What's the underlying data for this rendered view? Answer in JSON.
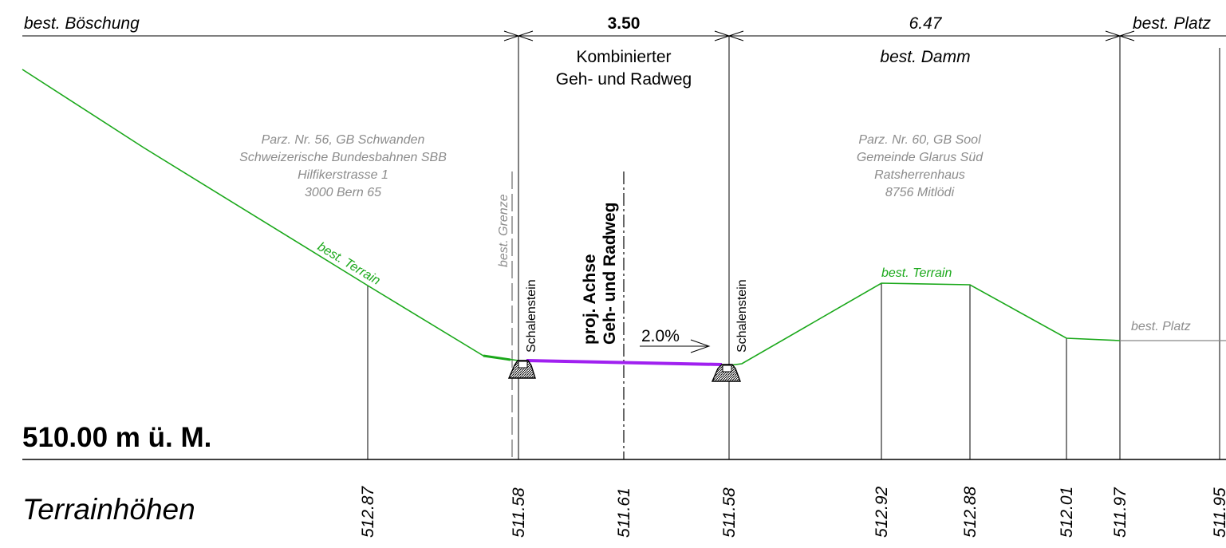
{
  "header": {
    "left_label": "best. Böschung",
    "width_path": "3.50",
    "width_dam": "6.47",
    "right_label": "best. Platz"
  },
  "labels": {
    "path_name_line1": "Kombinierter",
    "path_name_line2": "Geh- und Radweg",
    "dam": "best. Damm",
    "border": "best. Grenze",
    "axis_line1": "proj. Achse",
    "axis_line2": "Geh- und Radweg",
    "curb_left": "Schalenstein",
    "curb_right": "Schalenstein",
    "slope": "2.0%",
    "terrain_left": "best. Terrain",
    "terrain_right": "best. Terrain",
    "platz": "best. Platz"
  },
  "parcel_left": [
    "Parz. Nr. 56, GB Schwanden",
    "Schweizerische Bundesbahnen SBB",
    "Hilfikerstrasse 1",
    "3000 Bern 65"
  ],
  "parcel_right": [
    "Parz. Nr. 60, GB Sool",
    "Gemeinde Glarus Süd",
    "Ratsherrenhaus",
    "8756 Mitlödi"
  ],
  "datum": "510.00 m ü. M.",
  "terrain_heights_title": "Terrainhöhen",
  "terrain_heights": [
    "512.87",
    "511.58",
    "511.61",
    "511.58",
    "512.92",
    "512.88",
    "512.01",
    "511.97",
    "511.95"
  ],
  "colors": {
    "terrain": "#1aa81a",
    "project_surface": "#a020f0",
    "annotation_grey": "#8c8c8c",
    "lines": "#000000"
  }
}
